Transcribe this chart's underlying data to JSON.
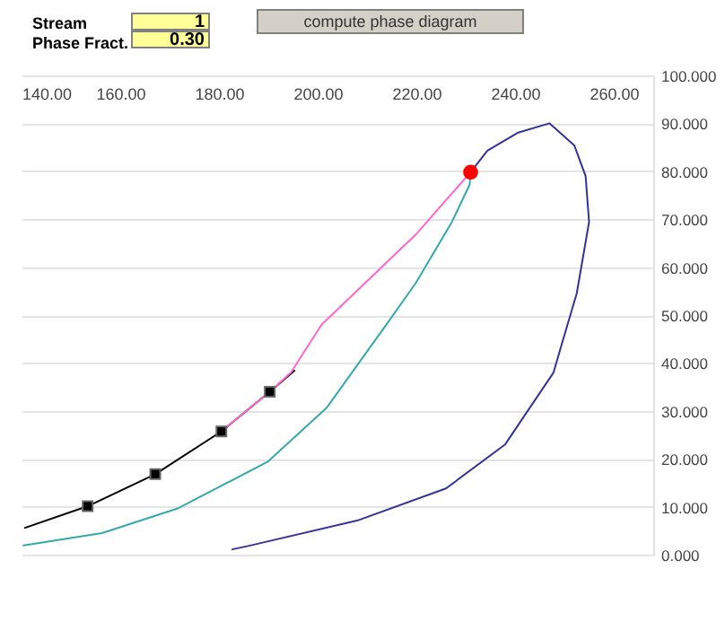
{
  "chart_data": {
    "type": "line",
    "annotations": [
      "Stream",
      "1",
      "Phase Fract.",
      "0.30",
      "compute phase diagram"
    ],
    "xlim": [
      140,
      268
    ],
    "xticks": [
      {
        "value": 140,
        "label": "140.00"
      },
      {
        "value": 160,
        "label": "160.00"
      },
      {
        "value": 180,
        "label": "180.00"
      },
      {
        "value": 200,
        "label": "200.00"
      },
      {
        "value": 220,
        "label": "220.00"
      },
      {
        "value": 240,
        "label": "240.00"
      },
      {
        "value": 260,
        "label": "260.00"
      }
    ],
    "ylim": [
      0,
      100
    ],
    "yticks": [
      {
        "value": 0,
        "label": "0.000"
      },
      {
        "value": 10,
        "label": "10.000"
      },
      {
        "value": 20,
        "label": "20.000"
      },
      {
        "value": 30,
        "label": "30.000"
      },
      {
        "value": 40,
        "label": "40.000"
      },
      {
        "value": 50,
        "label": "50.000"
      },
      {
        "value": 60,
        "label": "60.000"
      },
      {
        "value": 70,
        "label": "70.000"
      },
      {
        "value": 80,
        "label": "80.000"
      },
      {
        "value": 90,
        "label": "90.000"
      },
      {
        "value": 100,
        "label": "100.000"
      }
    ],
    "grid": "y",
    "series": [
      {
        "type": "line",
        "color": "#333399",
        "x": [
          182.7,
          186.3,
          208,
          226,
          238,
          247.8,
          249.6,
          252.5,
          255,
          254.3,
          252,
          247,
          240.5,
          234.4,
          231
        ],
        "values": [
          1.1,
          1.9,
          7.1,
          13.8,
          23,
          38,
          44.4,
          54.5,
          69.4,
          79,
          85.4,
          90,
          88,
          84.3,
          79.8
        ]
      },
      {
        "type": "line",
        "color": "#33aaaa",
        "x": [
          140.4,
          156.3,
          171.8,
          189.9,
          201.8,
          214,
          219.9,
          227.2,
          230.8,
          231
        ],
        "values": [
          1.9,
          4.5,
          9.7,
          19.4,
          30.6,
          48.1,
          56.7,
          69.4,
          77.2,
          79.8
        ]
      },
      {
        "type": "line",
        "color": "#000000",
        "x": [
          140.7,
          153.4,
          167.1,
          180.5,
          190.3,
          195.3
        ],
        "values": [
          5.6,
          10.1,
          16.8,
          25.7,
          34,
          38.4
        ]
      },
      {
        "type": "line",
        "color": "#ff66cc",
        "x": [
          180.5,
          190.3,
          194.6,
          200.8,
          219.9,
          231
        ],
        "values": [
          25.7,
          34,
          38,
          48,
          66.8,
          79.8
        ]
      },
      {
        "type": "scatter",
        "marker": "square",
        "color": "#000000",
        "x": [
          153.4,
          167.1,
          180.5,
          190.3
        ],
        "values": [
          10.1,
          16.8,
          25.7,
          34
        ]
      },
      {
        "type": "scatter",
        "marker": "circle",
        "color": "#ff0000",
        "x": [
          231
        ],
        "values": [
          79.8
        ]
      }
    ]
  }
}
